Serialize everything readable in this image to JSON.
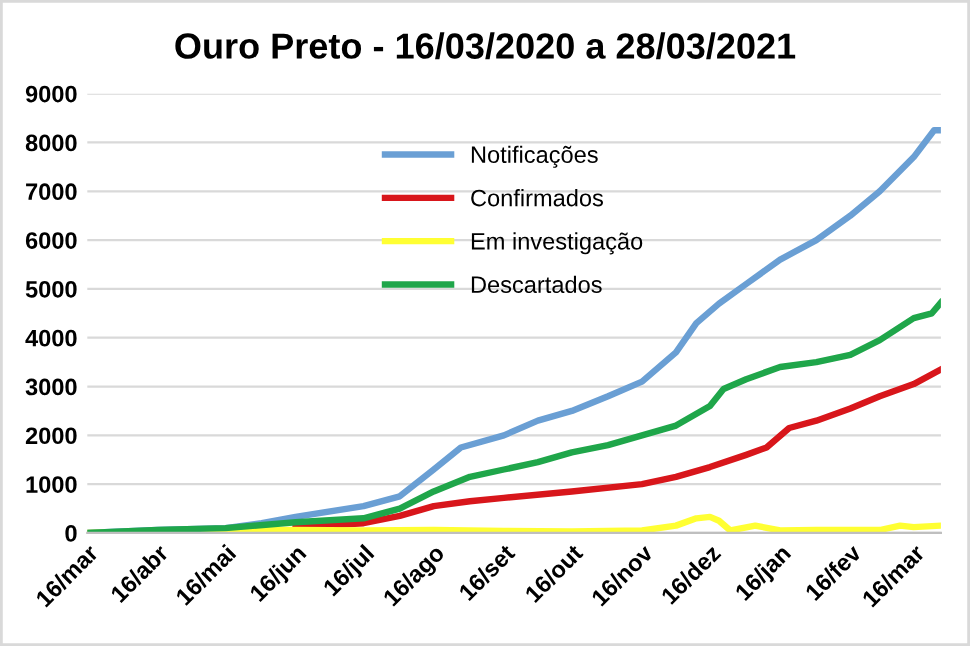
{
  "chart_data": {
    "type": "line",
    "title": "Ouro Preto - 16/03/2020 a 28/03/2021",
    "ylim": [
      0,
      9000
    ],
    "yticks": [
      0,
      1000,
      2000,
      3000,
      4000,
      5000,
      6000,
      7000,
      8000,
      9000
    ],
    "xlim": [
      "2020-03-16",
      "2021-03-28"
    ],
    "xticks": [
      {
        "value": "2020-03-16",
        "label": "16/mar"
      },
      {
        "value": "2020-04-16",
        "label": "16/abr"
      },
      {
        "value": "2020-05-16",
        "label": "16/mai"
      },
      {
        "value": "2020-06-16",
        "label": "16/jun"
      },
      {
        "value": "2020-07-16",
        "label": "16/jul"
      },
      {
        "value": "2020-08-16",
        "label": "16/ago"
      },
      {
        "value": "2020-09-16",
        "label": "16/set"
      },
      {
        "value": "2020-10-16",
        "label": "16/out"
      },
      {
        "value": "2020-11-16",
        "label": "16/nov"
      },
      {
        "value": "2020-12-16",
        "label": "16/dez"
      },
      {
        "value": "2021-01-16",
        "label": "16/jan"
      },
      {
        "value": "2021-02-16",
        "label": "16/fev"
      },
      {
        "value": "2021-03-16",
        "label": "16/mar"
      }
    ],
    "grid": "y",
    "legend": "top",
    "marker": "none",
    "line_style": "solid",
    "series": [
      {
        "name": "Notificações",
        "color": "#6a9fd4",
        "x": [
          "2020-03-16",
          "2020-04-16",
          "2020-05-16",
          "2020-06-01",
          "2020-06-16",
          "2020-07-16",
          "2020-08-01",
          "2020-08-16",
          "2020-08-28",
          "2020-09-16",
          "2020-10-01",
          "2020-10-16",
          "2020-11-01",
          "2020-11-16",
          "2020-12-01",
          "2020-12-10",
          "2020-12-20",
          "2021-01-01",
          "2021-01-16",
          "2021-02-01",
          "2021-02-16",
          "2021-03-01",
          "2021-03-16",
          "2021-03-25",
          "2021-03-28"
        ],
        "values": [
          0,
          60,
          100,
          200,
          330,
          550,
          750,
          1300,
          1750,
          2000,
          2300,
          2500,
          2800,
          3100,
          3700,
          4300,
          4700,
          5100,
          5600,
          6000,
          6500,
          7000,
          7700,
          8250,
          8250
        ]
      },
      {
        "name": "Confirmados",
        "color": "#d8161b",
        "x": [
          "2020-06-16",
          "2020-07-16",
          "2020-08-01",
          "2020-08-16",
          "2020-09-01",
          "2020-09-16",
          "2020-10-16",
          "2020-11-16",
          "2020-12-01",
          "2020-12-16",
          "2021-01-01",
          "2021-01-10",
          "2021-01-20",
          "2021-02-01",
          "2021-02-16",
          "2021-03-01",
          "2021-03-16",
          "2021-03-28"
        ],
        "values": [
          120,
          200,
          350,
          550,
          650,
          720,
          850,
          1000,
          1150,
          1350,
          1600,
          1750,
          2150,
          2300,
          2550,
          2800,
          3050,
          3350
        ]
      },
      {
        "name": "Em investigação",
        "color": "#ffff33",
        "x": [
          "2020-03-16",
          "2020-04-16",
          "2020-05-16",
          "2020-06-16",
          "2020-07-16",
          "2020-08-16",
          "2020-09-16",
          "2020-10-16",
          "2020-11-16",
          "2020-12-01",
          "2020-12-10",
          "2020-12-16",
          "2020-12-20",
          "2020-12-25",
          "2021-01-05",
          "2021-01-16",
          "2021-02-01",
          "2021-02-16",
          "2021-03-01",
          "2021-03-10",
          "2021-03-16",
          "2021-03-28"
        ],
        "values": [
          0,
          30,
          60,
          60,
          50,
          60,
          40,
          30,
          50,
          150,
          300,
          330,
          250,
          50,
          150,
          50,
          60,
          60,
          60,
          150,
          120,
          150
        ]
      },
      {
        "name": "Descartados",
        "color": "#1fa64a",
        "x": [
          "2020-03-16",
          "2020-04-16",
          "2020-05-16",
          "2020-06-16",
          "2020-07-16",
          "2020-08-01",
          "2020-08-16",
          "2020-09-01",
          "2020-09-16",
          "2020-10-01",
          "2020-10-16",
          "2020-11-01",
          "2020-11-16",
          "2020-12-01",
          "2020-12-16",
          "2020-12-22",
          "2021-01-01",
          "2021-01-16",
          "2021-02-01",
          "2021-02-16",
          "2021-03-01",
          "2021-03-16",
          "2021-03-24",
          "2021-03-28"
        ],
        "values": [
          0,
          60,
          100,
          220,
          300,
          500,
          850,
          1150,
          1300,
          1450,
          1650,
          1800,
          2000,
          2200,
          2600,
          2950,
          3150,
          3400,
          3500,
          3650,
          3950,
          4400,
          4500,
          4720
        ]
      }
    ]
  }
}
